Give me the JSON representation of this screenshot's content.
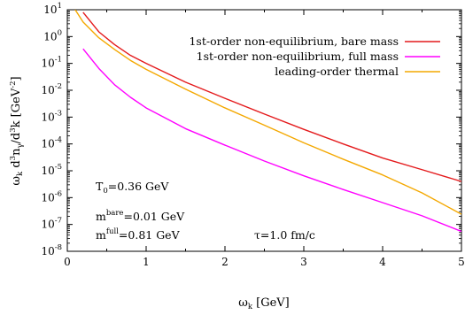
{
  "chart_data": {
    "type": "line",
    "title": "",
    "xlabel": "ω_k [GeV]",
    "ylabel": "ω_k d³n_γ/d³k [GeV⁻²]",
    "xlim": [
      0,
      5
    ],
    "ylim": [
      1e-08,
      10
    ],
    "yscale": "log",
    "grid": false,
    "legend_position": "top-right",
    "x_ticks": [
      "0",
      "1",
      "2",
      "3",
      "4",
      "5"
    ],
    "y_ticks": [
      {
        "value": 1e-08,
        "mantissa": "10",
        "exponent": "-8"
      },
      {
        "value": 1e-07,
        "mantissa": "10",
        "exponent": "-7"
      },
      {
        "value": 1e-06,
        "mantissa": "10",
        "exponent": "-6"
      },
      {
        "value": 1e-05,
        "mantissa": "10",
        "exponent": "-5"
      },
      {
        "value": 0.0001,
        "mantissa": "10",
        "exponent": "-4"
      },
      {
        "value": 0.001,
        "mantissa": "10",
        "exponent": "-3"
      },
      {
        "value": 0.01,
        "mantissa": "10",
        "exponent": "-2"
      },
      {
        "value": 0.1,
        "mantissa": "10",
        "exponent": "-1"
      },
      {
        "value": 1,
        "mantissa": "10",
        "exponent": "0"
      },
      {
        "value": 10,
        "mantissa": "10",
        "exponent": "1"
      }
    ],
    "series": [
      {
        "name": "1st-order non-equilibrium, bare mass",
        "color": "#e41a1c",
        "points": [
          [
            0.2,
            8.0
          ],
          [
            0.4,
            1.5
          ],
          [
            0.6,
            0.5
          ],
          [
            0.8,
            0.2
          ],
          [
            1.0,
            0.1
          ],
          [
            1.5,
            0.02
          ],
          [
            2.0,
            0.005
          ],
          [
            2.5,
            0.0013
          ],
          [
            3.0,
            0.00035
          ],
          [
            3.5,
            0.0001
          ],
          [
            4.0,
            3e-05
          ],
          [
            4.5,
            1.1e-05
          ],
          [
            5.0,
            4e-06
          ]
        ]
      },
      {
        "name": "1st-order non-equilibrium, full mass",
        "color": "#ff00ff",
        "points": [
          [
            0.2,
            0.35
          ],
          [
            0.4,
            0.065
          ],
          [
            0.6,
            0.016
          ],
          [
            0.8,
            0.0055
          ],
          [
            1.0,
            0.0022
          ],
          [
            1.5,
            0.00037
          ],
          [
            2.0,
            9e-05
          ],
          [
            2.5,
            2.3e-05
          ],
          [
            3.0,
            6.5e-06
          ],
          [
            3.5,
            2e-06
          ],
          [
            4.0,
            6.5e-07
          ],
          [
            4.5,
            2.1e-07
          ],
          [
            5.0,
            5.5e-08
          ]
        ]
      },
      {
        "name": "leading-order thermal",
        "color": "#f4a800",
        "points": [
          [
            0.1,
            10.0
          ],
          [
            0.2,
            3.5
          ],
          [
            0.4,
            0.9
          ],
          [
            0.6,
            0.33
          ],
          [
            0.8,
            0.13
          ],
          [
            1.0,
            0.06
          ],
          [
            1.5,
            0.011
          ],
          [
            2.0,
            0.0022
          ],
          [
            2.5,
            0.0005
          ],
          [
            3.0,
            0.00011
          ],
          [
            3.5,
            2.7e-05
          ],
          [
            4.0,
            7e-06
          ],
          [
            4.5,
            1.5e-06
          ],
          [
            5.0,
            2.4e-07
          ]
        ]
      }
    ],
    "annotations": {
      "t0": {
        "main": "T",
        "sub": "0",
        "rest": "=0.36 GeV"
      },
      "mbare": {
        "main": "m",
        "sup": "bare",
        "rest": "=0.01 GeV"
      },
      "mfull": {
        "main": "m",
        "sup": "full",
        "rest": "=0.81 GeV"
      },
      "tau": "τ=1.0 fm/c"
    }
  }
}
